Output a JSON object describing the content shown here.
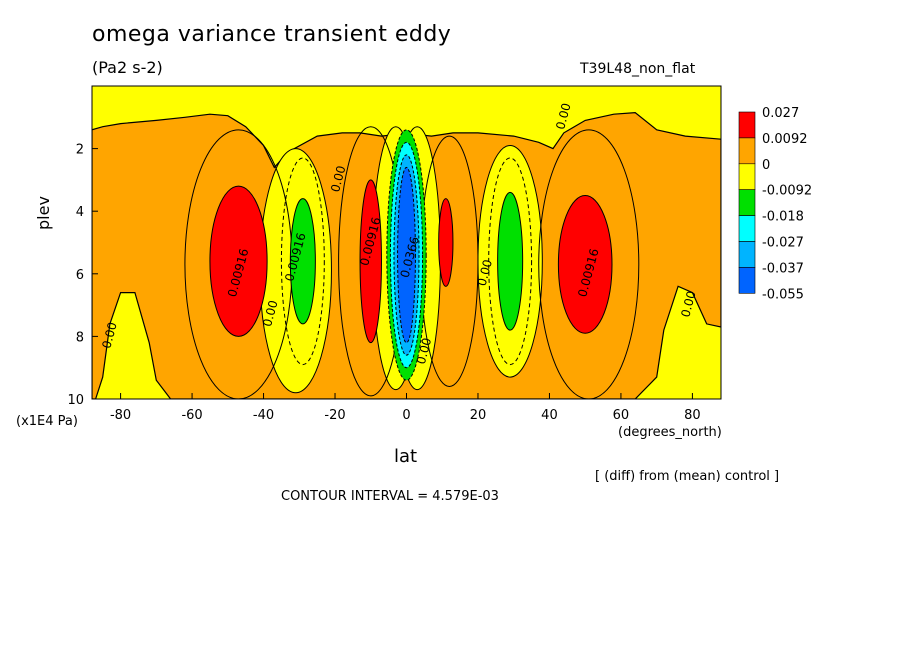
{
  "title": "omega variance transient eddy",
  "units": "(Pa2 s-2)",
  "run_label": "T39L48_non_flat",
  "diff_note": "[ (diff) from (mean) control ]",
  "contour_interval": "CONTOUR INTERVAL = 4.579E-03",
  "colors": {
    "red": "#ff0000",
    "orange": "#ffa500",
    "yellow": "#ffff00",
    "green": "#00e000",
    "cyan": "#00ffff",
    "lightblue": "#00b4ff",
    "blue": "#0064ff"
  },
  "chart_data": {
    "type": "heatmap",
    "subtype": "filled-contour",
    "xlabel": "lat",
    "xunit": "(degrees_north)",
    "ylabel": "plev",
    "yunit": "(x1E4 Pa)",
    "xlim": [
      -88,
      88
    ],
    "ylim": [
      10,
      0
    ],
    "xticks": [
      -80,
      -60,
      -40,
      -20,
      0,
      20,
      40,
      60,
      80
    ],
    "yticks": [
      2,
      4,
      6,
      8,
      10
    ],
    "legend": {
      "placement": "right",
      "levels": [
        "0.027",
        "0.0092",
        "0",
        "-0.0092",
        "-0.018",
        "-0.027",
        "-0.037",
        "-0.055"
      ],
      "colors": [
        "red",
        "orange",
        "yellow",
        "green",
        "cyan",
        "lightblue",
        "blue"
      ]
    },
    "contour_labels": [
      {
        "text": "0.00916",
        "lat": -46,
        "plev": 6.0
      },
      {
        "text": "0.00916",
        "lat": -30,
        "plev": 5.5
      },
      {
        "text": "0.00",
        "lat": -37,
        "plev": 7.3
      },
      {
        "text": "0.00",
        "lat": -18,
        "plev": 3.0
      },
      {
        "text": "0.00916",
        "lat": -9,
        "plev": 5.0
      },
      {
        "text": "0.0366",
        "lat": 2,
        "plev": 5.5
      },
      {
        "text": "0.00",
        "lat": 6,
        "plev": 8.5
      },
      {
        "text": "0.00",
        "lat": 23,
        "plev": 6.0
      },
      {
        "text": "0.00916",
        "lat": 52,
        "plev": 6.0
      },
      {
        "text": "0.00",
        "lat": 45,
        "plev": 1.0
      },
      {
        "text": "0.00",
        "lat": 80,
        "plev": 7.0
      },
      {
        "text": "0.00",
        "lat": -82,
        "plev": 8.0
      }
    ]
  }
}
